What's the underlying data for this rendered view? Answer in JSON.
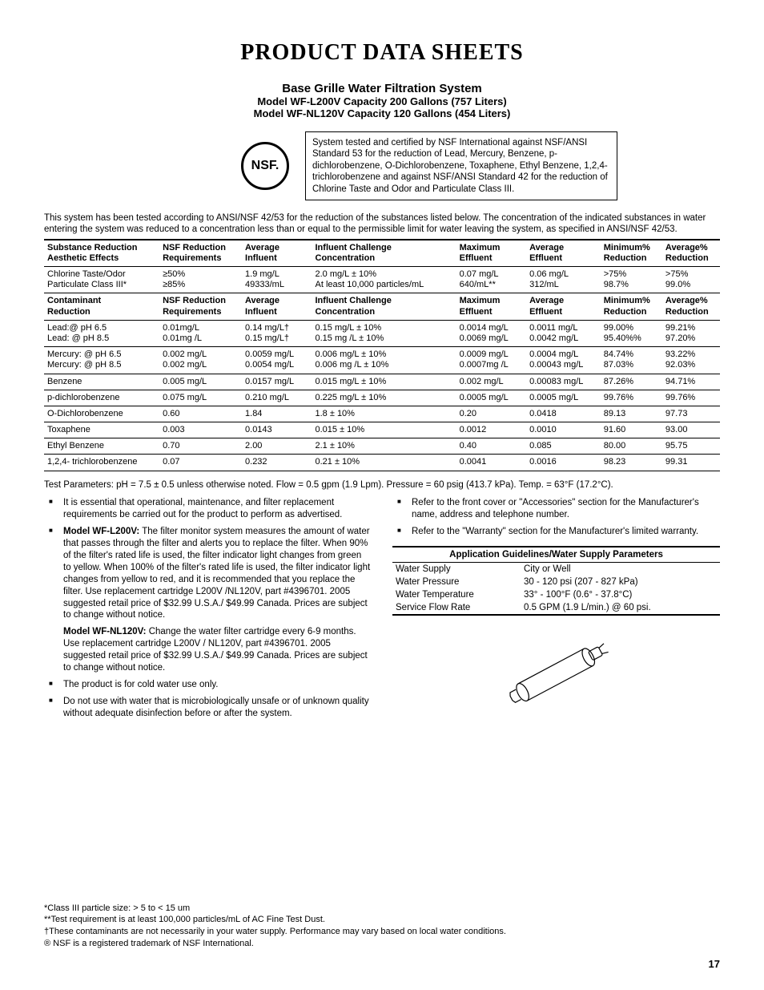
{
  "title": "PRODUCT DATA SHEETS",
  "subhead": {
    "line1": "Base Grille Water Filtration System",
    "line2": "Model WF-L200V Capacity 200 Gallons (757 Liters)",
    "line3": "Model WF-NL120V Capacity 120 Gallons (454 Liters)"
  },
  "nsf_logo_text": "NSF.",
  "cert_text": "System tested and certified by NSF International against NSF/ANSI Standard 53 for the reduction of Lead, Mercury, Benzene, p-dichlorobenzene, O-Dichlorobenzene, Toxaphene, Ethyl Benzene, 1,2,4-trichlorobenzene and against NSF/ANSI Standard 42 for the reduction of Chlorine Taste and Odor and Particulate Class III.",
  "intro": "This system has been tested according to ANSI/NSF 42/53 for the reduction of the substances listed below. The concentration of the indicated substances in water entering the system was reduced to a concentration less than or equal to the permissible limit for water leaving the system, as specified in ANSI/NSF 42/53.",
  "table_headers1": [
    "Substance Reduction\nAesthetic Effects",
    "NSF Reduction\nRequirements",
    "Average\nInfluent",
    "Influent Challenge\nConcentration",
    "Maximum\nEffluent",
    "Average\nEffluent",
    "Minimum%\nReduction",
    "Average%\nReduction"
  ],
  "rows1": [
    [
      "Chlorine Taste/Odor\nParticulate Class III*",
      "≥50%\n≥85%",
      "1.9 mg/L\n49333/mL",
      "2.0 mg/L ± 10%\nAt least 10,000 particles/mL",
      "0.07 mg/L\n640/mL**",
      "0.06 mg/L\n312/mL",
      ">75%\n98.7%",
      ">75%\n99.0%"
    ]
  ],
  "table_headers2": [
    "Contaminant\nReduction",
    "NSF Reduction\nRequirements",
    "Average\nInfluent",
    "Influent Challenge\nConcentration",
    "Maximum\nEffluent",
    "Average\nEffluent",
    "Minimum%\nReduction",
    "Average%\nReduction"
  ],
  "rows2": [
    [
      "Lead:@ pH 6.5\nLead: @ pH 8.5",
      "0.01mg/L\n0.01mg /L",
      "0.14 mg/L†\n0.15 mg/L†",
      "0.15 mg/L ± 10%\n0.15 mg /L ± 10%",
      "0.0014 mg/L\n0.0069 mg/L",
      "0.0011 mg/L\n0.0042 mg/L",
      "99.00%\n95.40%%",
      "99.21%\n97.20%"
    ],
    [
      "Mercury: @ pH 6.5\nMercury: @ pH 8.5",
      "0.002 mg/L\n0.002 mg/L",
      "0.0059 mg/L\n0.0054 mg/L",
      "0.006 mg/L ± 10%\n0.006 mg /L ± 10%",
      "0.0009 mg/L\n0.0007mg /L",
      "0.0004 mg/L\n0.00043 mg/L",
      "84.74%\n87.03%",
      "93.22%\n92.03%"
    ],
    [
      "Benzene",
      "0.005 mg/L",
      "0.0157 mg/L",
      "0.015 mg/L ± 10%",
      "0.002 mg/L",
      "0.00083 mg/L",
      "87.26%",
      "94.71%"
    ],
    [
      "p-dichlorobenzene",
      "0.075 mg/L",
      "0.210 mg/L",
      "0.225 mg/L ± 10%",
      "0.0005 mg/L",
      "0.0005 mg/L",
      "99.76%",
      "99.76%"
    ],
    [
      "O-Dichlorobenzene",
      "0.60",
      "1.84",
      "1.8 ± 10%",
      "0.20",
      "0.0418",
      "89.13",
      "97.73"
    ],
    [
      "Toxaphene",
      "0.003",
      "0.0143",
      "0.015 ± 10%",
      "0.0012",
      "0.0010",
      "91.60",
      "93.00"
    ],
    [
      "Ethyl Benzene",
      "0.70",
      "2.00",
      "2.1 ± 10%",
      "0.40",
      "0.085",
      "80.00",
      "95.75"
    ],
    [
      "1,2,4- trichlorobenzene",
      "0.07",
      "0.232",
      "0.21 ± 10%",
      "0.0041",
      "0.0016",
      "98.23",
      "99.31"
    ]
  ],
  "test_params": "Test Parameters: pH = 7.5 ± 0.5 unless otherwise noted. Flow = 0.5 gpm (1.9 Lpm). Pressure = 60 psig (413.7 kPa). Temp. = 63°F (17.2°C).",
  "left_bullets": [
    "It is essential that operational, maintenance, and filter replacement requirements be carried out for the product to perform as advertised."
  ],
  "model_l200v_label": "Model WF-L200V:",
  "model_l200v_text": " The filter monitor system measures the amount of water that passes through the filter and alerts you to replace the filter. When 90% of the filter's rated life is used, the filter indicator light changes from green to yellow. When 100% of the filter's rated life is used, the filter indicator light changes from yellow to red, and it is recommended that you replace the filter. Use replacement cartridge L200V /NL120V, part #4396701. 2005 suggested retail price of $32.99 U.S.A./ $49.99 Canada. Prices are subject to change without notice.",
  "model_nl120v_label": "Model WF-NL120V:",
  "model_nl120v_text": " Change the water filter cartridge every 6-9 months. Use replacement cartridge L200V / NL120V, part #4396701. 2005 suggested retail price of $32.99 U.S.A./ $49.99 Canada. Prices are subject to change without notice.",
  "left_bullets2": [
    "The product is for cold water use only.",
    "Do not use with water that is microbiologically unsafe or of unknown quality without adequate disinfection before or after the system."
  ],
  "right_bullets": [
    "Refer to the front cover or \"Accessories\" section for the Manufacturer's name, address and telephone number.",
    "Refer to the \"Warranty\" section for the Manufacturer's limited warranty."
  ],
  "guidelines_title": "Application Guidelines/Water Supply Parameters",
  "guidelines_rows": [
    [
      "Water Supply",
      "City or Well"
    ],
    [
      "Water Pressure",
      "30 - 120 psi (207 - 827 kPa)"
    ],
    [
      "Water Temperature",
      "33° - 100°F (0.6° - 37.8°C)"
    ],
    [
      "Service Flow Rate",
      "0.5 GPM (1.9 L/min.) @ 60 psi."
    ]
  ],
  "footnotes": [
    " *Class III particle size: > 5 to < 15 um",
    "**Test requirement is at least 100,000 particles/mL of AC Fine Test Dust.",
    " †These contaminants are not necessarily in your water supply. Performance may vary based on local water conditions.",
    "® NSF is a registered trademark of NSF International."
  ],
  "pagenum": "17"
}
